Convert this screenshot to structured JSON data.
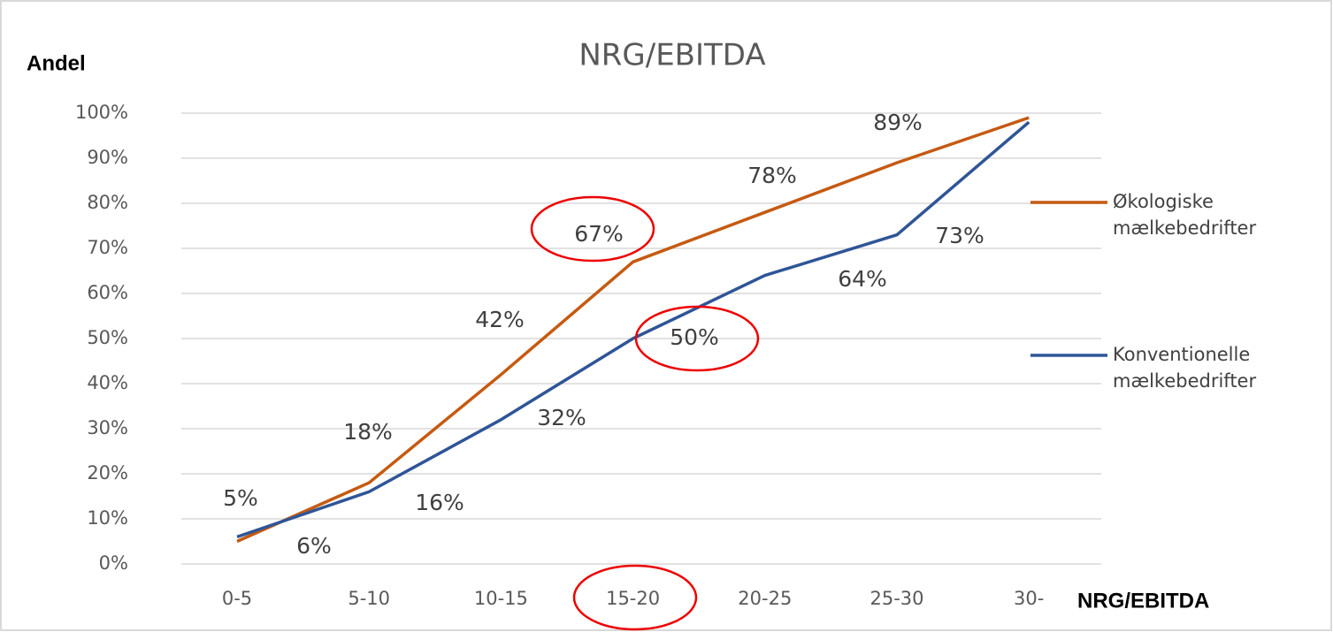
{
  "chart_data": {
    "type": "line",
    "title": "NRG/EBITDA",
    "y_label": "Andel",
    "x_label": "NRG/EBITDA",
    "categories": [
      "0-5",
      "5-10",
      "10-15",
      "15-20",
      "20-25",
      "25-30",
      "30-"
    ],
    "series": [
      {
        "name": "Økologiske mælkebedrifter",
        "color": "#c55a11",
        "values": [
          5,
          18,
          42,
          67,
          78,
          89,
          99
        ],
        "value_labels": [
          "5%",
          "18%",
          "42%",
          "67%",
          "78%",
          "89%",
          null
        ]
      },
      {
        "name": "Konventionelle mælkebedrifter",
        "color": "#2f5597",
        "values": [
          6,
          16,
          32,
          50,
          64,
          73,
          98
        ],
        "value_labels": [
          "6%",
          "16%",
          "32%",
          "50%",
          "64%",
          "73%",
          null
        ]
      }
    ],
    "ylim": [
      0,
      100
    ],
    "yticks": [
      {
        "value": 0,
        "label": "0%"
      },
      {
        "value": 10,
        "label": "10%"
      },
      {
        "value": 20,
        "label": "20%"
      },
      {
        "value": 30,
        "label": "30%"
      },
      {
        "value": 40,
        "label": "40%"
      },
      {
        "value": 50,
        "label": "50%"
      },
      {
        "value": 60,
        "label": "60%"
      },
      {
        "value": 70,
        "label": "70%"
      },
      {
        "value": 80,
        "label": "80%"
      },
      {
        "value": 90,
        "label": "90%"
      },
      {
        "value": 100,
        "label": "100%"
      }
    ],
    "grid": true,
    "legend": "right"
  }
}
